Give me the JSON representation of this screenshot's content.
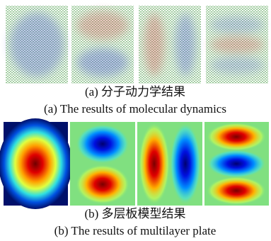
{
  "figure": {
    "a": {
      "caption_zh": "(a) 分子动力学结果",
      "caption_en": "(a) The results of molecular dynamics"
    },
    "b": {
      "caption_zh": "(b) 多层板模型结果",
      "caption_en": "(b) The results of multilayer plate"
    }
  }
}
